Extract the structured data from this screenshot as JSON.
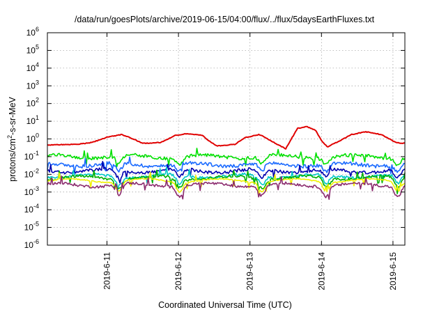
{
  "chart_data": {
    "type": "line",
    "title": "/data/run/goesPlots/archive/2019-06-15/04:00/flux/../flux/5daysEarthFluxes.txt",
    "xlabel": "Coordinated Universal Time (UTC)",
    "ylabel": {
      "pre": "protons/cm",
      "sup": "2",
      "post": "-s-sr-MeV"
    },
    "y_scale": "log",
    "ylim_exp": [
      -6,
      6
    ],
    "y_tick_exps": [
      -6,
      -5,
      -4,
      -3,
      -2,
      -1,
      0,
      1,
      2,
      3,
      4,
      5,
      6
    ],
    "xlim_days": [
      "2019-06-10T04:00",
      "2019-06-15T04:00"
    ],
    "x_ticks": [
      "2019-6-11",
      "2019-6-12",
      "2019-6-13",
      "2019-6-14",
      "2019-6-15"
    ],
    "x_tick_days": [
      "2019-06-11T00:00",
      "2019-06-12T00:00",
      "2019-06-13T00:00",
      "2019-06-14T00:00",
      "2019-06-15T00:00"
    ],
    "grid": true,
    "legend": "none",
    "series": [
      {
        "color": "#e00000",
        "base_log": -0.3,
        "noise": 0.04,
        "kind": "red"
      },
      {
        "color": "#00e000",
        "base_log": -1.0,
        "noise": 0.18,
        "kind": "band"
      },
      {
        "color": "#1a6aff",
        "base_log": -1.45,
        "noise": 0.2,
        "kind": "band"
      },
      {
        "color": "#0000b0",
        "base_log": -1.8,
        "noise": 0.18,
        "kind": "band"
      },
      {
        "color": "#00c8c8",
        "base_log": -2.1,
        "noise": 0.15,
        "kind": "band"
      },
      {
        "color": "#00b000",
        "base_log": -2.2,
        "noise": 0.15,
        "kind": "band"
      },
      {
        "color": "#f0f000",
        "base_log": -2.35,
        "noise": 0.06,
        "kind": "band"
      },
      {
        "color": "#8b2b6e",
        "base_log": -2.6,
        "noise": 0.15,
        "kind": "band"
      }
    ]
  }
}
